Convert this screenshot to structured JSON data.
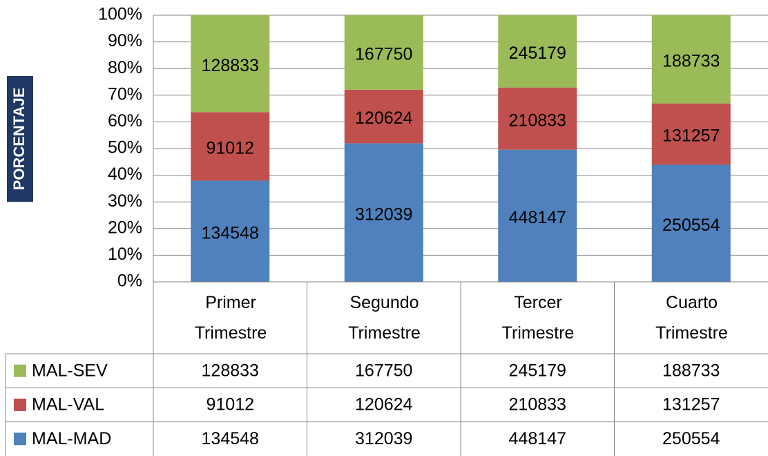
{
  "chart_data": {
    "type": "bar",
    "stacking": "percent",
    "y_axis_label": "PORCENTAJE",
    "categories": [
      "Primer Trimestre",
      "Segundo Trimestre",
      "Tercer Trimestre",
      "Cuarto Trimestre"
    ],
    "series": [
      {
        "name": "MAL-MAD",
        "color": "#4f81bd",
        "values": [
          134548,
          312039,
          448147,
          250554
        ]
      },
      {
        "name": "MAL-VAL",
        "color": "#c0504d",
        "values": [
          91012,
          120624,
          210833,
          131257
        ]
      },
      {
        "name": "MAL-SEV",
        "color": "#9bbb59",
        "values": [
          128833,
          167750,
          245179,
          188733
        ]
      }
    ],
    "ylim": [
      0,
      100
    ],
    "yticks": [
      {
        "value": 0,
        "label": "0%"
      },
      {
        "value": 10,
        "label": "10%"
      },
      {
        "value": 20,
        "label": "20%"
      },
      {
        "value": 30,
        "label": "30%"
      },
      {
        "value": 40,
        "label": "40%"
      },
      {
        "value": 50,
        "label": "50%"
      },
      {
        "value": 60,
        "label": "60%"
      },
      {
        "value": 70,
        "label": "70%"
      },
      {
        "value": 80,
        "label": "80%"
      },
      {
        "value": 90,
        "label": "90%"
      },
      {
        "value": 100,
        "label": "100%"
      }
    ],
    "grid": true,
    "data_labels": true,
    "data_table": true
  }
}
